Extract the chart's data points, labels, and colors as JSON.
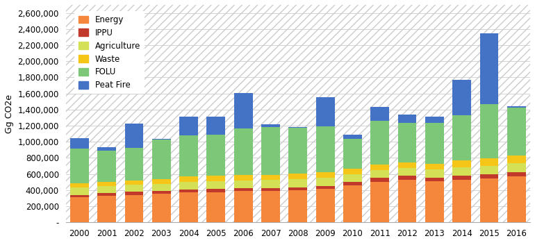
{
  "years": [
    2000,
    2001,
    2002,
    2003,
    2004,
    2005,
    2006,
    2007,
    2008,
    2009,
    2010,
    2011,
    2012,
    2013,
    2014,
    2015,
    2016
  ],
  "categories": [
    "Energy",
    "IPPU",
    "Agriculture",
    "Waste",
    "FOLU",
    "Peat Fire"
  ],
  "colors": [
    "#F4873B",
    "#C0392B",
    "#D4E157",
    "#F5C518",
    "#7DC878",
    "#4472C4"
  ],
  "data": {
    "Energy": [
      310000,
      330000,
      340000,
      355000,
      370000,
      375000,
      388000,
      390000,
      398000,
      415000,
      460000,
      505000,
      525000,
      507000,
      528000,
      548000,
      568000
    ],
    "IPPU": [
      32000,
      33000,
      38000,
      38000,
      38000,
      38000,
      38000,
      38000,
      39000,
      38000,
      42000,
      47000,
      52000,
      47000,
      48000,
      48000,
      52000
    ],
    "Agriculture": [
      90000,
      90000,
      88000,
      88000,
      95000,
      96000,
      96000,
      97000,
      100000,
      100000,
      96000,
      97000,
      97000,
      100000,
      105000,
      108000,
      113000
    ],
    "Waste": [
      52000,
      53000,
      57000,
      57000,
      68000,
      68000,
      68000,
      68000,
      72000,
      72000,
      67000,
      71000,
      72000,
      76000,
      87000,
      91000,
      96000
    ],
    "FOLU": [
      430000,
      380000,
      405000,
      490000,
      510000,
      510000,
      578000,
      590000,
      565000,
      565000,
      375000,
      545000,
      488000,
      508000,
      565000,
      670000,
      598000
    ],
    "Peat Fire": [
      130000,
      50000,
      295000,
      5000,
      235000,
      228000,
      435000,
      38000,
      12000,
      360000,
      52000,
      168000,
      102000,
      78000,
      435000,
      880000,
      18000
    ]
  },
  "ylabel": "Gg CO2e",
  "ylim": [
    0,
    2700000
  ],
  "yticks": [
    0,
    200000,
    400000,
    600000,
    800000,
    1000000,
    1200000,
    1400000,
    1600000,
    1800000,
    2000000,
    2200000,
    2400000,
    2600000
  ],
  "ytick_labels": [
    "-",
    "200,000",
    "400,000",
    "600,000",
    "800,000",
    "1,000,000",
    "1,200,000",
    "1,400,000",
    "1,600,000",
    "1,800,000",
    "2,000,000",
    "2,200,000",
    "2,400,000",
    "2,600,000"
  ],
  "background_color": "#FFFFFF",
  "hatch_color": "#DDDDDD",
  "grid_color": "#CCCCCC",
  "legend_pos": "upper left"
}
